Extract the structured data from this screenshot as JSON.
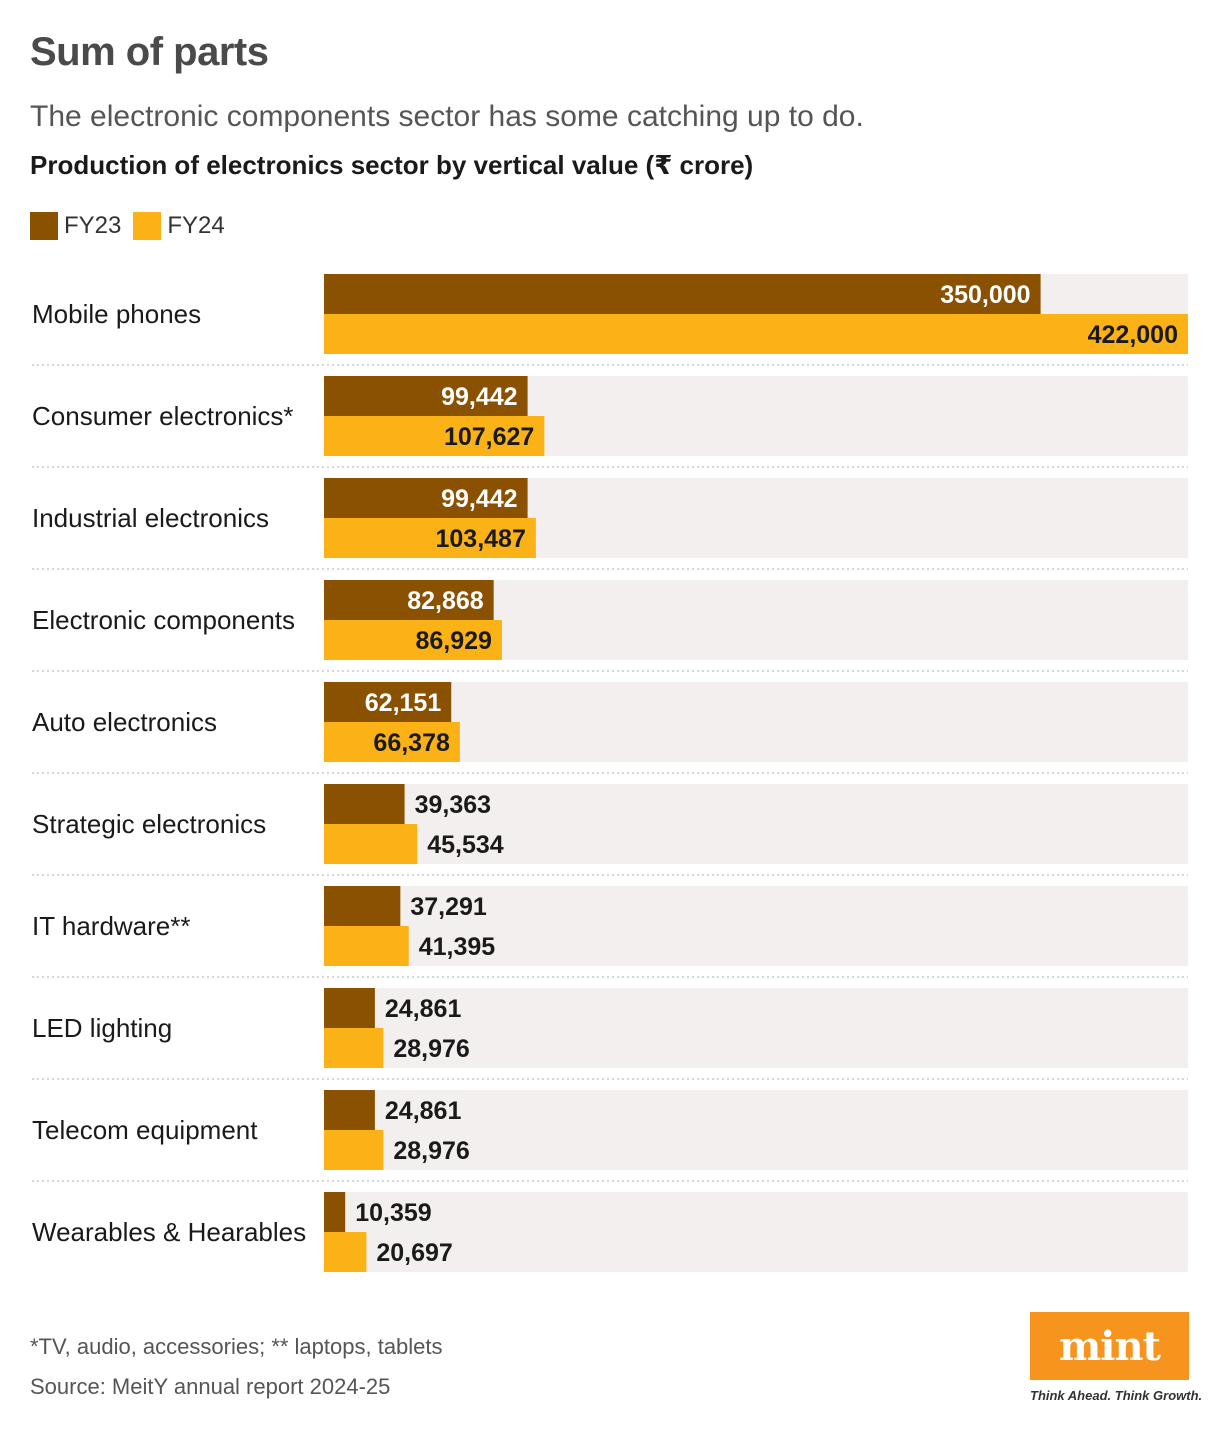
{
  "title": "Sum of parts",
  "subtitle": "The electronic components sector has some catching up to do.",
  "chart_heading": "Production of electronics sector by vertical value (₹ crore)",
  "legend": [
    {
      "label": "FY23",
      "color": "#8a5200"
    },
    {
      "label": "FY24",
      "color": "#fbb216"
    }
  ],
  "chart_data": {
    "type": "bar",
    "orientation": "horizontal",
    "categories": [
      "Mobile phones",
      "Consumer electronics*",
      "Industrial electronics",
      "Electronic components",
      "Auto electronics",
      "Strategic electronics",
      "IT hardware**",
      "LED lighting",
      "Telecom equipment",
      "Wearables & Hearables"
    ],
    "series": [
      {
        "name": "FY23",
        "color": "#8a5200",
        "values": [
          350000,
          99442,
          99442,
          82868,
          62151,
          39363,
          37291,
          24861,
          24861,
          10359
        ]
      },
      {
        "name": "FY24",
        "color": "#fbb216",
        "values": [
          422000,
          107627,
          103487,
          86929,
          66378,
          45534,
          41395,
          28976,
          28976,
          20697
        ]
      }
    ],
    "xlim": [
      0,
      422000
    ],
    "track_color": "#f3efee",
    "legend_position": "top-left",
    "grid": false
  },
  "footnote": "*TV, audio, accessories; ** laptops, tablets",
  "source": "Source: MeitY annual report 2024-25",
  "brand": {
    "name": "mint",
    "tagline": "Think Ahead. Think Growth.",
    "color": "#f7941d"
  }
}
